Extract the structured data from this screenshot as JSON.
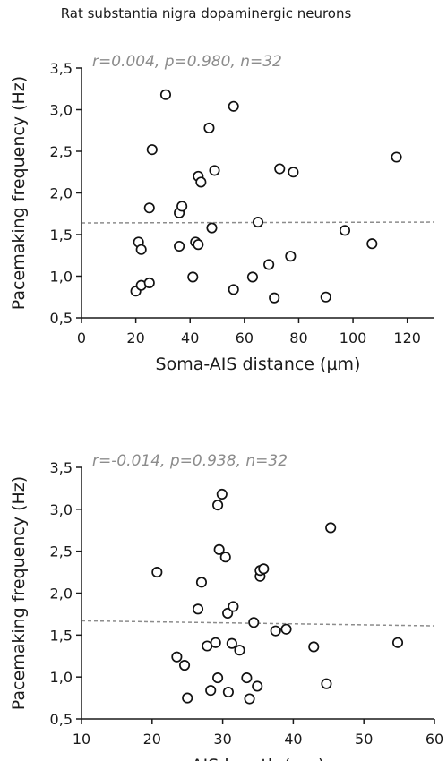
{
  "page_title": "Rat substantia nigra dopaminergic neurons",
  "chart_data": [
    {
      "type": "scatter",
      "title": "",
      "annotation": "r=0.004, p=0.980, n=32",
      "xlabel": "Soma-AIS distance (µm)",
      "ylabel": "Pacemaking frequency (Hz)",
      "xlim": [
        0,
        130
      ],
      "ylim": [
        0.5,
        3.5
      ],
      "xticks": [
        0,
        20,
        40,
        60,
        80,
        100,
        120
      ],
      "xtick_labels": [
        "0",
        "20",
        "40",
        "60",
        "80",
        "100",
        "120"
      ],
      "yticks": [
        0.5,
        1.0,
        1.5,
        2.0,
        2.5,
        3.0,
        3.5
      ],
      "ytick_labels": [
        "0,5",
        "1,0",
        "1,5",
        "2,0",
        "2,5",
        "3,0",
        "3,5"
      ],
      "grid": false,
      "marker": "open-circle",
      "trend_line": {
        "style": "dashed",
        "color": "#8c8c8c",
        "x": [
          0,
          130
        ],
        "y": [
          1.64,
          1.65
        ]
      },
      "points": [
        {
          "x": 20,
          "y": 0.82
        },
        {
          "x": 22,
          "y": 0.89
        },
        {
          "x": 25,
          "y": 0.92
        },
        {
          "x": 21,
          "y": 1.41
        },
        {
          "x": 22,
          "y": 1.32
        },
        {
          "x": 25,
          "y": 1.82
        },
        {
          "x": 26,
          "y": 2.52
        },
        {
          "x": 31,
          "y": 3.18
        },
        {
          "x": 36,
          "y": 1.36
        },
        {
          "x": 36,
          "y": 1.76
        },
        {
          "x": 37,
          "y": 1.84
        },
        {
          "x": 41,
          "y": 0.99
        },
        {
          "x": 42,
          "y": 1.41
        },
        {
          "x": 43,
          "y": 1.38
        },
        {
          "x": 43,
          "y": 2.2
        },
        {
          "x": 44,
          "y": 2.13
        },
        {
          "x": 47,
          "y": 2.78
        },
        {
          "x": 48,
          "y": 1.58
        },
        {
          "x": 49,
          "y": 2.27
        },
        {
          "x": 56,
          "y": 3.04
        },
        {
          "x": 56,
          "y": 0.84
        },
        {
          "x": 63,
          "y": 0.99
        },
        {
          "x": 65,
          "y": 1.65
        },
        {
          "x": 69,
          "y": 1.14
        },
        {
          "x": 71,
          "y": 0.74
        },
        {
          "x": 73,
          "y": 2.29
        },
        {
          "x": 77,
          "y": 1.24
        },
        {
          "x": 78,
          "y": 2.25
        },
        {
          "x": 90,
          "y": 0.75
        },
        {
          "x": 97,
          "y": 1.55
        },
        {
          "x": 107,
          "y": 1.39
        },
        {
          "x": 116,
          "y": 2.43
        }
      ]
    },
    {
      "type": "scatter",
      "title": "",
      "annotation": "r=-0.014, p=0.938, n=32",
      "xlabel": "AIS length (µm)",
      "ylabel": "Pacemaking frequency (Hz)",
      "xlim": [
        10,
        60
      ],
      "ylim": [
        0.5,
        3.5
      ],
      "xticks": [
        10,
        20,
        30,
        40,
        50,
        60
      ],
      "xtick_labels": [
        "10",
        "20",
        "30",
        "40",
        "50",
        "60"
      ],
      "yticks": [
        0.5,
        1.0,
        1.5,
        2.0,
        2.5,
        3.0,
        3.5
      ],
      "ytick_labels": [
        "0,5",
        "1,0",
        "1,5",
        "2,0",
        "2,5",
        "3,0",
        "3,5"
      ],
      "grid": false,
      "marker": "open-circle",
      "trend_line": {
        "style": "dashed",
        "color": "#8c8c8c",
        "x": [
          10,
          60
        ],
        "y": [
          1.67,
          1.61
        ]
      },
      "points": [
        {
          "x": 20.7,
          "y": 2.25
        },
        {
          "x": 23.5,
          "y": 1.24
        },
        {
          "x": 24.6,
          "y": 1.14
        },
        {
          "x": 25.0,
          "y": 0.75
        },
        {
          "x": 26.5,
          "y": 1.81
        },
        {
          "x": 27.0,
          "y": 2.13
        },
        {
          "x": 27.8,
          "y": 1.37
        },
        {
          "x": 28.3,
          "y": 0.84
        },
        {
          "x": 29.0,
          "y": 1.41
        },
        {
          "x": 29.3,
          "y": 0.99
        },
        {
          "x": 29.3,
          "y": 3.05
        },
        {
          "x": 29.5,
          "y": 2.52
        },
        {
          "x": 29.9,
          "y": 3.18
        },
        {
          "x": 30.4,
          "y": 2.43
        },
        {
          "x": 30.7,
          "y": 1.76
        },
        {
          "x": 30.8,
          "y": 0.82
        },
        {
          "x": 31.3,
          "y": 1.4
        },
        {
          "x": 31.5,
          "y": 1.84
        },
        {
          "x": 32.4,
          "y": 1.32
        },
        {
          "x": 33.4,
          "y": 0.99
        },
        {
          "x": 33.8,
          "y": 0.74
        },
        {
          "x": 34.4,
          "y": 1.65
        },
        {
          "x": 34.9,
          "y": 0.89
        },
        {
          "x": 35.3,
          "y": 2.2
        },
        {
          "x": 35.3,
          "y": 2.27
        },
        {
          "x": 35.8,
          "y": 2.29
        },
        {
          "x": 37.5,
          "y": 1.55
        },
        {
          "x": 39.0,
          "y": 1.57
        },
        {
          "x": 42.9,
          "y": 1.36
        },
        {
          "x": 44.7,
          "y": 0.92
        },
        {
          "x": 45.3,
          "y": 2.78
        },
        {
          "x": 54.8,
          "y": 1.41
        }
      ]
    }
  ]
}
